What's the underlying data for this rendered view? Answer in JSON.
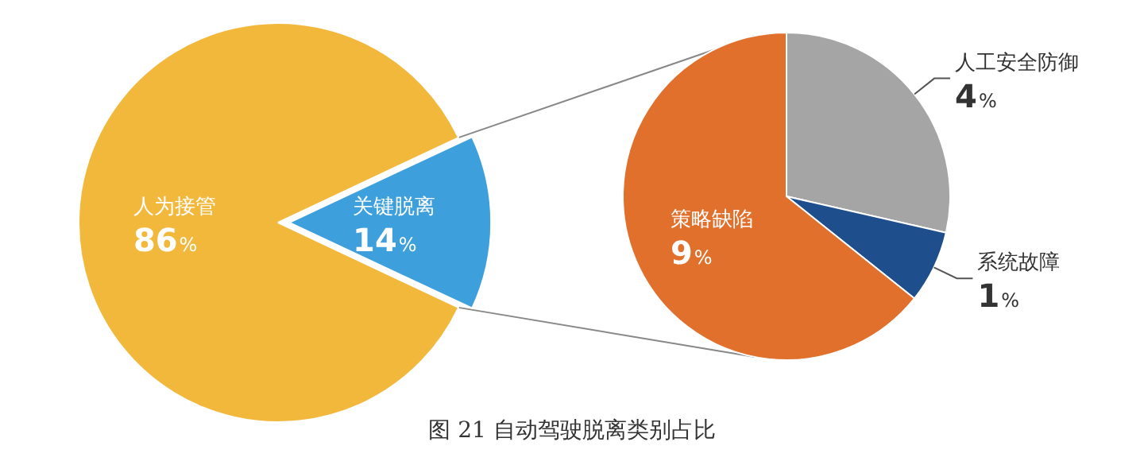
{
  "chart_data": [
    {
      "type": "pie",
      "categories": [
        "人为接管",
        "关键脱离"
      ],
      "values": [
        86,
        14
      ],
      "colors": [
        "#f2b83b",
        "#3d9fdc"
      ],
      "value_labels": [
        "86%",
        "14%"
      ],
      "annotations": [
        "图 21 自动驾驶脱离类别占比"
      ]
    },
    {
      "type": "pie",
      "categories": [
        "人工安全防御",
        "系统故障",
        "策略缺陷"
      ],
      "values": [
        4,
        1,
        9
      ],
      "colors": [
        "#a5a5a5",
        "#1f4e8c",
        "#e0702c"
      ],
      "value_labels": [
        "4%",
        "1%",
        "9%"
      ]
    }
  ]
}
